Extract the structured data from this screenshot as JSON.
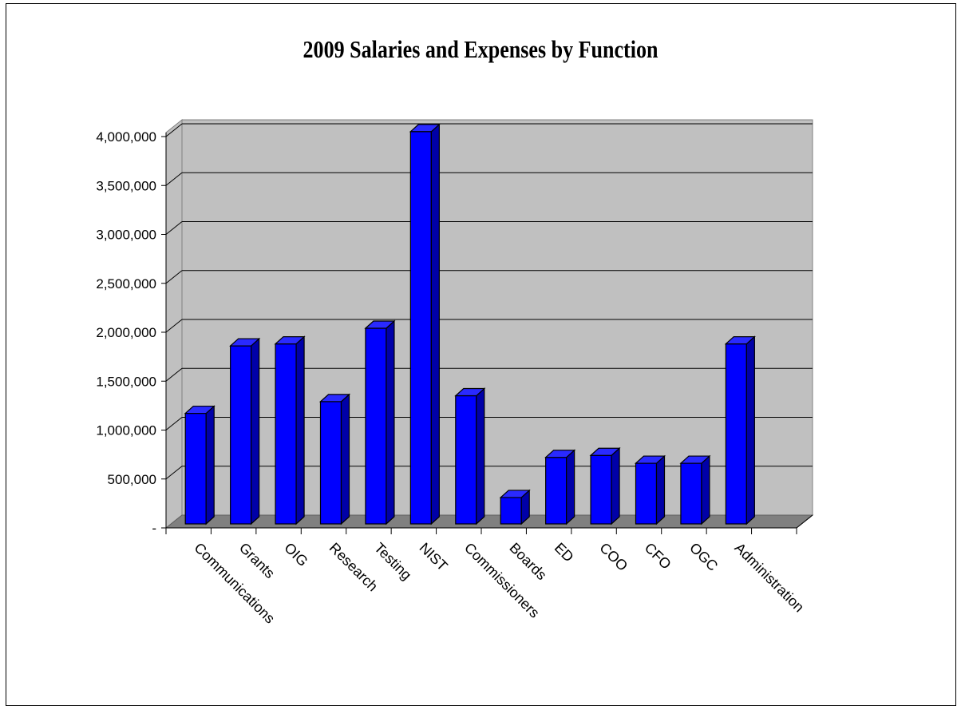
{
  "chart_data": {
    "type": "bar",
    "title": "2009 Salaries and Expenses by Function",
    "xlabel": "",
    "ylabel": "",
    "categories": [
      "Communications",
      "Grants",
      "OIG",
      "Research",
      "Testing",
      "NIST",
      "Commissioners",
      "Boards",
      "ED",
      "COO",
      "CFO",
      "OGC",
      "Administration"
    ],
    "values": [
      1130000,
      1820000,
      1840000,
      1250000,
      2000000,
      4010000,
      1310000,
      270000,
      680000,
      700000,
      620000,
      620000,
      1840000
    ],
    "ylim": [
      0,
      4000000
    ],
    "yticks": [
      0,
      500000,
      1000000,
      1500000,
      2000000,
      2500000,
      3000000,
      3500000,
      4000000
    ],
    "ytick_labels": [
      "-",
      "500,000",
      "1,000,000",
      "1,500,000",
      "2,000,000",
      "2,500,000",
      "3,000,000",
      "3,500,000",
      "4,000,000"
    ],
    "grid": true,
    "legend": "none",
    "colors": {
      "bar_front": "#0000ff",
      "bar_top": "#2a2aff",
      "bar_side": "#0000a8",
      "wall": "#c0c0c0",
      "floor": "#808080"
    }
  }
}
